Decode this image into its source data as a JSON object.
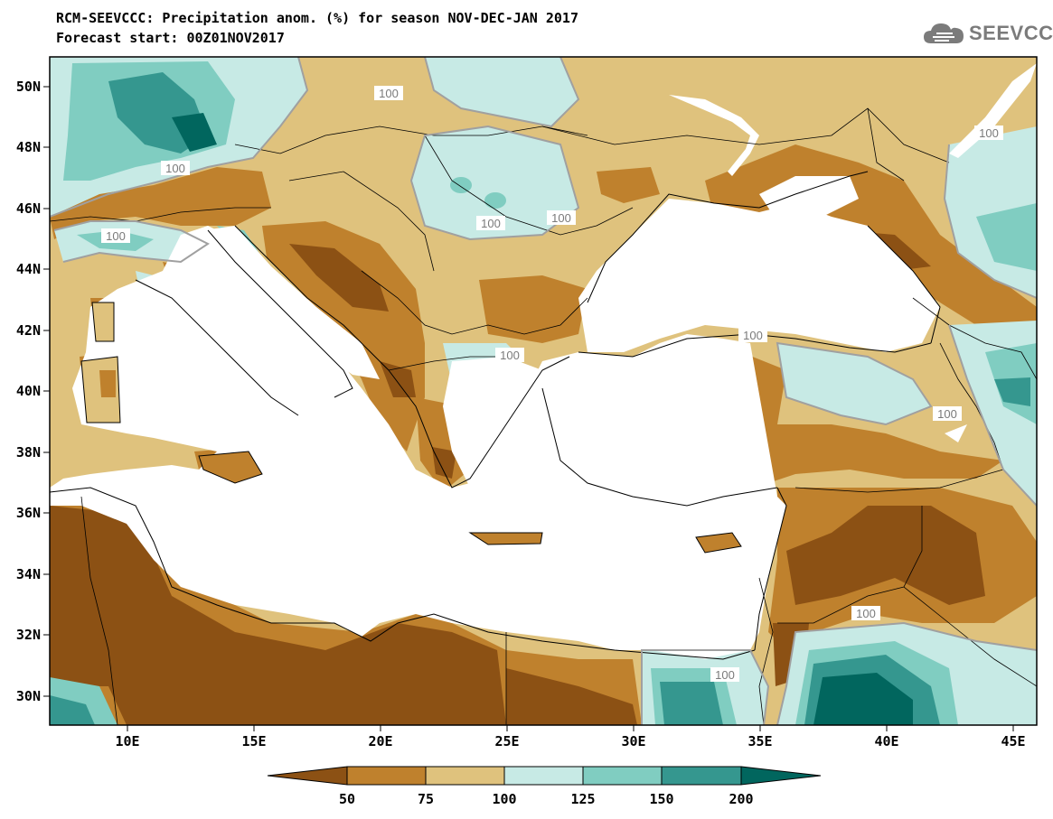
{
  "header": {
    "title_line1": "RCM-SEEVCCC: Precipitation anom. (%) for season NOV-DEC-JAN 2017",
    "title_line2": "Forecast start: 00Z01NOV2017"
  },
  "logo": {
    "text": "SEEVCCC",
    "icon": "cloud-icon"
  },
  "map": {
    "lat_labels": [
      "50N",
      "48N",
      "46N",
      "44N",
      "42N",
      "40N",
      "38N",
      "36N",
      "34N",
      "32N",
      "30N"
    ],
    "lon_labels": [
      "10E",
      "15E",
      "20E",
      "25E",
      "30E",
      "35E",
      "40E",
      "45E"
    ],
    "contour_labels": [
      "100",
      "100",
      "100",
      "100",
      "100",
      "100",
      "100",
      "100",
      "100",
      "100",
      "100"
    ],
    "colors": {
      "very_dry": "#8c5114",
      "dry": "#bf812d",
      "slightly_dry": "#dfc27d",
      "slightly_wet": "#c7eae5",
      "wet": "#80cdc1",
      "very_wet": "#35978f",
      "extreme_wet": "#01665e",
      "sea": "#ffffff"
    }
  },
  "colorbar": {
    "labels": [
      "50",
      "75",
      "100",
      "125",
      "150",
      "200"
    ],
    "colors": [
      "#8c5114",
      "#bf812d",
      "#dfc27d",
      "#c7eae5",
      "#80cdc1",
      "#35978f",
      "#01665e"
    ]
  }
}
